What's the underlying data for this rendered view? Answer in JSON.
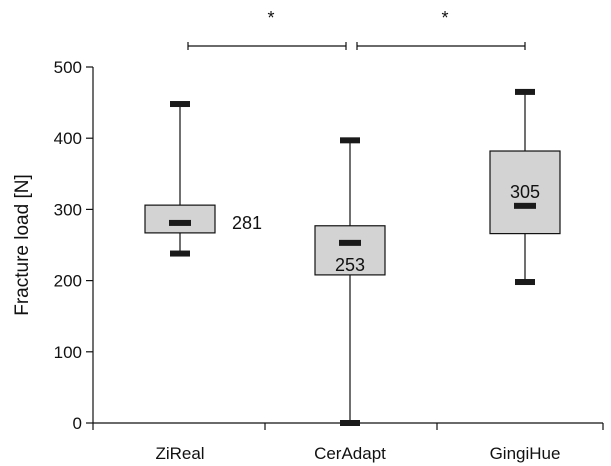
{
  "chart_data": {
    "type": "boxplot",
    "title": "",
    "xlabel": "",
    "ylabel": "Fracture load [N]",
    "ylim": [
      0,
      500
    ],
    "yticks": [
      0,
      100,
      200,
      300,
      400,
      500
    ],
    "grid": false,
    "legend": "none",
    "categories": [
      "ZiReal",
      "CerAdapt",
      "GingiHue"
    ],
    "boxes": [
      {
        "category": "ZiReal",
        "min": 238,
        "q1": 267,
        "median": 281,
        "q3": 306,
        "max": 448,
        "median_label": "281"
      },
      {
        "category": "CerAdapt",
        "min": 0,
        "q1": 208,
        "median": 253,
        "q3": 277,
        "max": 397,
        "median_label": "253"
      },
      {
        "category": "GingiHue",
        "min": 198,
        "q1": 266,
        "median": 305,
        "q3": 382,
        "max": 465,
        "median_label": "305"
      }
    ],
    "significance": [
      {
        "from": "ZiReal",
        "to": "CerAdapt",
        "label": "*"
      },
      {
        "from": "CerAdapt",
        "to": "GingiHue",
        "label": "*"
      }
    ],
    "colors": {
      "box_fill": "#d3d3d3",
      "stroke": "#111111",
      "bar": "#1a1a1a"
    }
  }
}
